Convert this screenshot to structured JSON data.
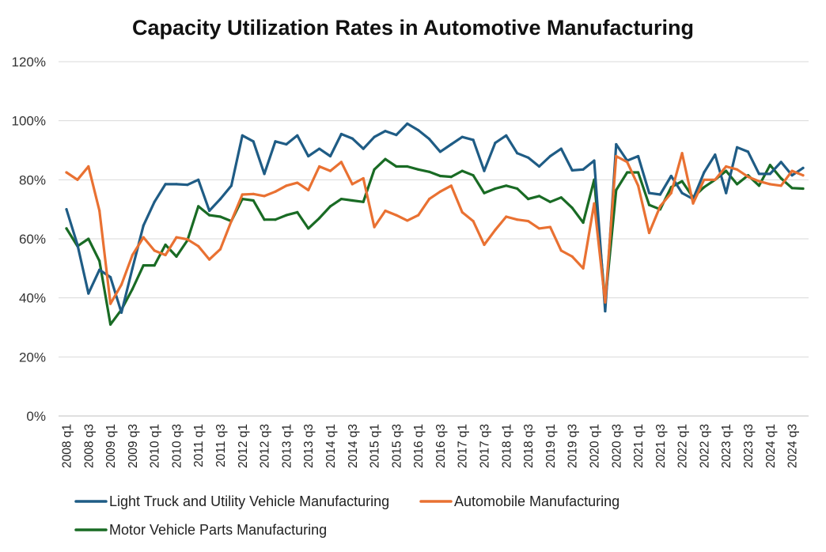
{
  "chart_data": {
    "type": "line",
    "title": "Capacity Utilization Rates in Automotive Manufacturing",
    "xlabel": "",
    "ylabel": "",
    "ylim": [
      0,
      120
    ],
    "y_ticks": [
      0,
      20,
      40,
      60,
      80,
      100,
      120
    ],
    "y_tick_labels": [
      "0%",
      "20%",
      "40%",
      "60%",
      "80%",
      "100%",
      "120%"
    ],
    "grid": true,
    "legend_position": "bottom-left",
    "categories": [
      "2008 q1",
      "2008 q2",
      "2008 q3",
      "2008 q4",
      "2009 q1",
      "2009 q2",
      "2009 q3",
      "2009 q4",
      "2010 q1",
      "2010 q2",
      "2010 q3",
      "2010 q4",
      "2011 q1",
      "2011 q2",
      "2011 q3",
      "2011 q4",
      "2012 q1",
      "2012 q2",
      "2012 q3",
      "2012 q4",
      "2013 q1",
      "2013 q2",
      "2013 q3",
      "2013 q4",
      "2014 q1",
      "2014 q2",
      "2014 q3",
      "2014 q4",
      "2015 q1",
      "2015 q2",
      "2015 q3",
      "2015 q4",
      "2016 q1",
      "2016 q2",
      "2016 q3",
      "2016 q4",
      "2017 q1",
      "2017 q2",
      "2017 q3",
      "2017 q4",
      "2018 q1",
      "2018 q2",
      "2018 q3",
      "2018 q4",
      "2019 q1",
      "2019 q2",
      "2019 q3",
      "2019 q4",
      "2020 q1",
      "2020 q2",
      "2020 q3",
      "2020 q4",
      "2021 q1",
      "2021 q2",
      "2021 q3",
      "2021 q4",
      "2022 q1",
      "2022 q2",
      "2022 q3",
      "2022 q4",
      "2023 q1",
      "2023 q2",
      "2023 q3",
      "2023 q4",
      "2024 q1",
      "2024 q2",
      "2024 q3",
      "2024 q4"
    ],
    "tick_labels": [
      "2008 q1",
      "2008 q3",
      "2009 q1",
      "2009 q3",
      "2010 q1",
      "2010 q3",
      "2011 q1",
      "2011 q3",
      "2012 q1",
      "2012 q3",
      "2013 q1",
      "2013 q3",
      "2014 q1",
      "2014 q3",
      "2015 q1",
      "2015 q3",
      "2016 q1",
      "2016 q3",
      "2017 q1",
      "2017 q3",
      "2018 q1",
      "2018 q3",
      "2019 q1",
      "2019 q3",
      "2020 q1",
      "2020 q3",
      "2021 q1",
      "2021 q3",
      "2022 q1",
      "2022 q3",
      "2023 q1",
      "2023 q3",
      "2024 q1",
      "2024 q3"
    ],
    "series": [
      {
        "name": "Light Truck and Utility Vehicle Manufacturing",
        "color": "#1F5C85",
        "values": [
          70,
          58,
          41.5,
          49.5,
          47,
          35,
          50,
          64.5,
          72.5,
          78.5,
          78.5,
          78.3,
          80,
          69.5,
          73.5,
          78,
          95,
          93,
          82,
          93,
          92,
          95,
          88,
          90.5,
          88,
          95.5,
          94,
          90.5,
          94.5,
          96.5,
          95.2,
          99,
          96.8,
          93.8,
          89.5,
          92,
          94.5,
          93.5,
          83,
          92.5,
          95,
          89,
          87.5,
          84.5,
          88,
          90.5,
          83.2,
          83.5,
          86.5,
          35.5,
          92,
          86.5,
          88,
          75.5,
          75,
          81.3,
          75.5,
          73.5,
          82.5,
          88.5,
          75.5,
          91,
          89.5,
          82,
          82,
          86,
          81.5,
          84
        ]
      },
      {
        "name": "Automobile Manufacturing",
        "color": "#E97132",
        "values": [
          82.5,
          80,
          84.5,
          69.5,
          38,
          44.5,
          54.5,
          60.5,
          56,
          54.5,
          60.5,
          59.8,
          57.5,
          53,
          56.5,
          66,
          75,
          75.2,
          74.5,
          76,
          78,
          79,
          76.5,
          84.5,
          83,
          86,
          78.5,
          80.5,
          64,
          69.5,
          68,
          66.2,
          68,
          73.5,
          76,
          78,
          69,
          66,
          58,
          63,
          67.5,
          66.5,
          66,
          63.5,
          64,
          56,
          54,
          50,
          72,
          38.5,
          88,
          86,
          78,
          62,
          71,
          75.5,
          89,
          72,
          80,
          80,
          84.5,
          83.5,
          81,
          79.5,
          78.5,
          78,
          83,
          81.5
        ]
      },
      {
        "name": "Motor Vehicle Parts Manufacturing",
        "color": "#196B24",
        "values": [
          63.5,
          57.5,
          60,
          52.5,
          31,
          36,
          43,
          51,
          51,
          58,
          54,
          59.5,
          71,
          68,
          67.5,
          66,
          73.5,
          73,
          66.5,
          66.5,
          68,
          69,
          63.5,
          67,
          71,
          73.5,
          73,
          72.5,
          83.5,
          87,
          84.5,
          84.5,
          83.5,
          82.7,
          81.3,
          81,
          83,
          81.5,
          75.5,
          77,
          78,
          77,
          73.5,
          74.5,
          72.5,
          74,
          70.5,
          65.5,
          80,
          38.5,
          76.5,
          82.5,
          82.5,
          71.5,
          70,
          77.5,
          79.5,
          74,
          77.5,
          80,
          83,
          78.5,
          81.5,
          78,
          85,
          80.5,
          77.2,
          77
        ]
      }
    ]
  }
}
